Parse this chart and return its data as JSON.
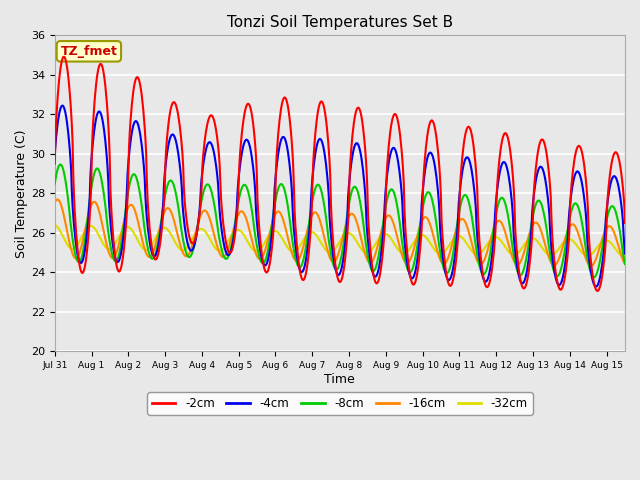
{
  "title": "Tonzi Soil Temperatures Set B",
  "xlabel": "Time",
  "ylabel": "Soil Temperature (C)",
  "annotation": "TZ_fmet",
  "annotation_color": "#cc0000",
  "annotation_bg": "#ffffcc",
  "annotation_border": "#999900",
  "ylim": [
    20,
    36
  ],
  "yticks": [
    20,
    22,
    24,
    26,
    28,
    30,
    32,
    34,
    36
  ],
  "series_labels": [
    "-2cm",
    "-4cm",
    "-8cm",
    "-16cm",
    "-32cm"
  ],
  "series_colors": [
    "#ff0000",
    "#0000ee",
    "#00cc00",
    "#ff8800",
    "#dddd00"
  ],
  "line_width": 1.5,
  "fig_bg": "#e8e8e8",
  "plot_bg": "#e8e8e8",
  "grid_color": "#ffffff",
  "xlim": [
    0,
    15.5
  ],
  "xtick_positions": [
    0,
    1,
    2,
    3,
    4,
    5,
    6,
    7,
    8,
    9,
    10,
    11,
    12,
    13,
    14,
    15
  ],
  "xtick_labels": [
    "Jul 31",
    "Aug 1",
    "Aug 2",
    "Aug 3",
    "Aug 4",
    "Aug 5",
    "Aug 6",
    "Aug 7",
    "Aug 8",
    "Aug 9",
    "Aug 10",
    "Aug 11",
    "Aug 12",
    "Aug 13",
    "Aug 14",
    "Aug 15"
  ]
}
